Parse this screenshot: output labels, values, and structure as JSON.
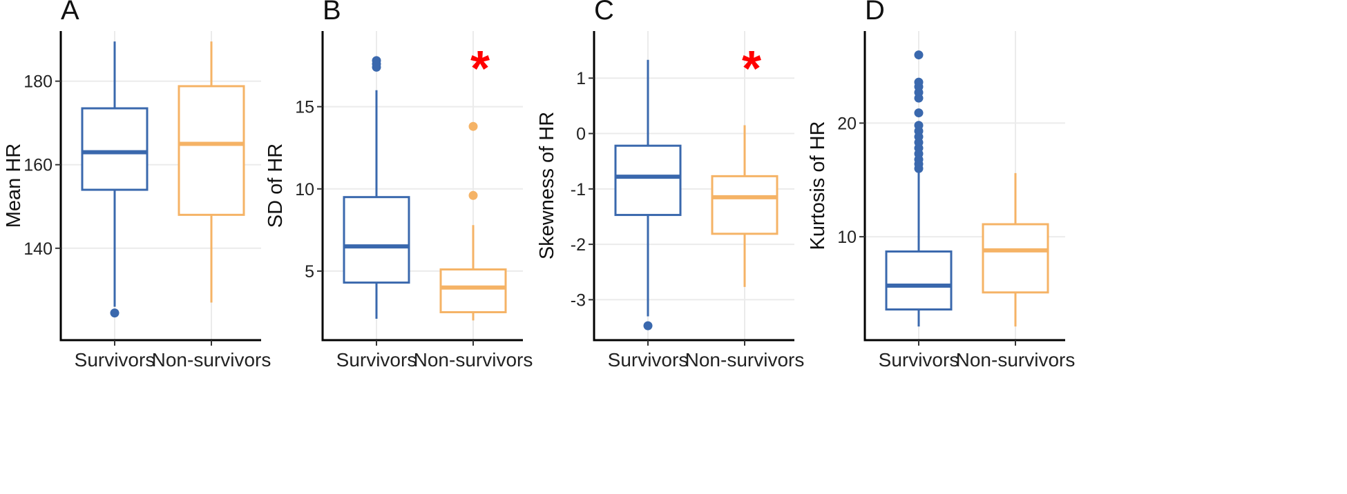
{
  "chart_data": [
    {
      "type": "box",
      "panel_label": "A",
      "xlabel": "",
      "ylabel": "Mean HR",
      "categories": [
        "Survivors",
        "Non-survivors"
      ],
      "ylim": [
        118,
        192
      ],
      "yticks": [
        140,
        160,
        180
      ],
      "grid": true,
      "series": [
        {
          "color": "#3a68ad",
          "whisker_low": 126,
          "q1": 154,
          "median": 163,
          "q3": 173.5,
          "whisker_high": 189.5,
          "outliers": [
            124.5
          ]
        },
        {
          "color": "#f5b366",
          "whisker_low": 127,
          "q1": 148,
          "median": 165,
          "q3": 178.8,
          "whisker_high": 189.5,
          "outliers": []
        }
      ],
      "significance": []
    },
    {
      "type": "box",
      "panel_label": "B",
      "xlabel": "",
      "ylabel": "SD of HR",
      "categories": [
        "Survivors",
        "Non-survivors"
      ],
      "ylim": [
        0.8,
        19.6
      ],
      "yticks": [
        5,
        10,
        15
      ],
      "grid": true,
      "series": [
        {
          "color": "#3a68ad",
          "whisker_low": 2.1,
          "q1": 4.3,
          "median": 6.5,
          "q3": 9.5,
          "whisker_high": 16.0,
          "outliers": [
            17.4,
            17.6,
            17.8
          ]
        },
        {
          "color": "#f5b366",
          "whisker_low": 2.0,
          "q1": 2.5,
          "median": 4.0,
          "q3": 5.1,
          "whisker_high": 7.8,
          "outliers": [
            9.6,
            13.8
          ]
        }
      ],
      "significance": [
        "*"
      ]
    },
    {
      "type": "box",
      "panel_label": "C",
      "xlabel": "",
      "ylabel": "Skewness of HR",
      "categories": [
        "Survivors",
        "Non-survivors"
      ],
      "ylim": [
        -3.73,
        1.85
      ],
      "yticks": [
        1,
        0,
        -1,
        -2,
        -3
      ],
      "ytick_labels": [
        "1",
        "0",
        "-1",
        "-2",
        "-3"
      ],
      "grid": true,
      "series": [
        {
          "color": "#3a68ad",
          "whisker_low": -3.3,
          "q1": -1.47,
          "median": -0.78,
          "q3": -0.22,
          "whisker_high": 1.33,
          "outliers": [
            -3.47
          ]
        },
        {
          "color": "#f5b366",
          "whisker_low": -2.77,
          "q1": -1.81,
          "median": -1.15,
          "q3": -0.77,
          "whisker_high": 0.15,
          "outliers": []
        }
      ],
      "significance": [
        "*"
      ]
    },
    {
      "type": "box",
      "panel_label": "D",
      "xlabel": "",
      "ylabel": "Kurtosis of HR",
      "categories": [
        "Survivors",
        "Non-survivors"
      ],
      "ylim": [
        0.9,
        28.1
      ],
      "yticks": [
        10,
        20
      ],
      "grid": true,
      "series": [
        {
          "color": "#3a68ad",
          "whisker_low": 2.1,
          "q1": 3.6,
          "median": 5.7,
          "q3": 8.7,
          "whisker_high": 15.8,
          "outliers": [
            16.0,
            16.4,
            16.8,
            17.3,
            17.8,
            18.3,
            18.8,
            19.3,
            19.8,
            20.9,
            22.2,
            22.7,
            23.2,
            23.6,
            26.0
          ]
        },
        {
          "color": "#f5b366",
          "whisker_low": 2.1,
          "q1": 5.1,
          "median": 8.8,
          "q3": 11.1,
          "whisker_high": 15.6,
          "outliers": []
        }
      ],
      "significance": []
    }
  ]
}
